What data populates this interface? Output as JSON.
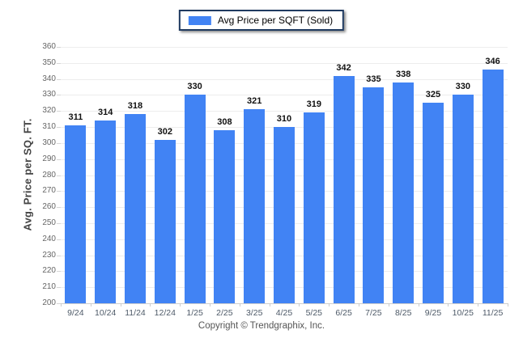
{
  "legend": {
    "label": "Avg Price per SQFT (Sold)",
    "swatch_color": "#4183f4"
  },
  "footer": {
    "copyright": "Copyright © Trendgraphix, Inc."
  },
  "chart_data": {
    "type": "bar",
    "title": "",
    "categories": [
      "9/24",
      "10/24",
      "11/24",
      "12/24",
      "1/25",
      "2/25",
      "3/25",
      "4/25",
      "5/25",
      "6/25",
      "7/25",
      "8/25",
      "9/25",
      "10/25",
      "11/25"
    ],
    "values": [
      311,
      314,
      318,
      302,
      330,
      308,
      321,
      310,
      319,
      342,
      335,
      338,
      325,
      330,
      346
    ],
    "series_name": "Avg Price per SQFT (Sold)",
    "xlabel": "",
    "ylabel": "Avg. Price per SQ. FT.",
    "ylim": [
      200,
      360
    ],
    "ytick_step": 10,
    "grid": "horizontal",
    "legend_position": "top-center",
    "bar_color": "#4183f4",
    "value_labels": "above-bars"
  }
}
